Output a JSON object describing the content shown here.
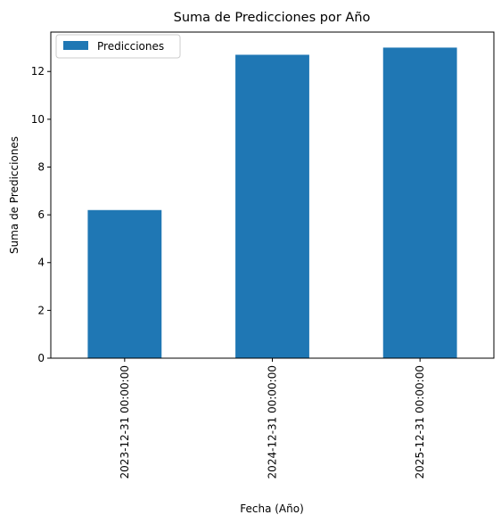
{
  "chart_data": {
    "type": "bar",
    "title": "Suma de Predicciones por Año",
    "xlabel": "Fecha (Año)",
    "ylabel": "Suma de Predicciones",
    "categories": [
      "2023-12-31 00:00:00",
      "2024-12-31 00:00:00",
      "2025-12-31 00:00:00"
    ],
    "series": [
      {
        "name": "Predicciones",
        "values": [
          6.2,
          12.7,
          13.0
        ]
      }
    ],
    "ylim": [
      0,
      13.65
    ],
    "yticks": [
      0,
      2,
      4,
      6,
      8,
      10,
      12
    ],
    "grid": false,
    "legend_position": "top-left",
    "colors": {
      "bar": "#1f77b4",
      "axis": "#000000",
      "background": "#ffffff"
    }
  }
}
